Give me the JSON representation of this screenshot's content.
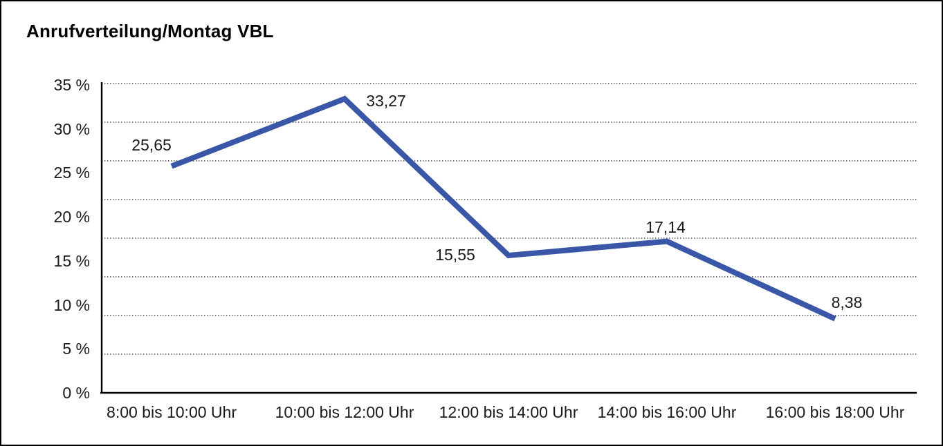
{
  "title": "Anrufverteilung/Montag VBL",
  "colors": {
    "line": "#3A57A7",
    "grid": "#404040",
    "axis": "#000000",
    "text": "#1a1a1a",
    "border": "#000000",
    "background": "#ffffff"
  },
  "chart_data": {
    "type": "line",
    "title": "Anrufverteilung/Montag VBL",
    "categories": [
      "8:00 bis 10:00 Uhr",
      "10:00 bis 12:00 Uhr",
      "12:00 bis 14:00 Uhr",
      "14:00 bis 16:00 Uhr",
      "16:00 bis 18:00 Uhr"
    ],
    "values": [
      25.65,
      33.27,
      15.55,
      17.14,
      8.38
    ],
    "value_labels": [
      "25,65",
      "33,27",
      "15,55",
      "17,14",
      "8,38"
    ],
    "ytick_labels": [
      "35 %",
      "30 %",
      "25 %",
      "20 %",
      "15 %",
      "10 %",
      "5 %",
      "0 %"
    ],
    "ylim": [
      0,
      35
    ],
    "xlabel": "",
    "ylabel": "",
    "grid": "horizontal-dotted",
    "legend": "none"
  }
}
